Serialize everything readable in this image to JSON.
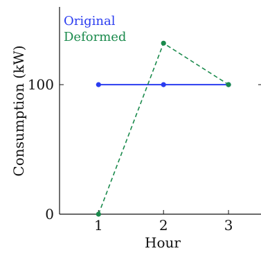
{
  "chart_data": {
    "type": "line",
    "title": "",
    "xlabel": "Hour",
    "ylabel": "Consumption (kW)",
    "x": [
      1,
      2,
      3
    ],
    "xlim": [
      0.4,
      3.5
    ],
    "ylim": [
      0,
      160
    ],
    "xticks": [
      1,
      2,
      3
    ],
    "yticks": [
      0,
      100
    ],
    "xtick_labels": [
      "1",
      "2",
      "3"
    ],
    "ytick_labels": [
      "0",
      "100"
    ],
    "grid": false,
    "legend_position": "top-left",
    "series": [
      {
        "name": "Original",
        "values": [
          100,
          100,
          100
        ],
        "color": "#2a3cf0",
        "line_style": "solid",
        "marker": "circle"
      },
      {
        "name": "Deformed",
        "values": [
          0,
          132,
          100
        ],
        "color": "#1a8a4c",
        "line_style": "dashed",
        "marker": "circle"
      }
    ]
  }
}
